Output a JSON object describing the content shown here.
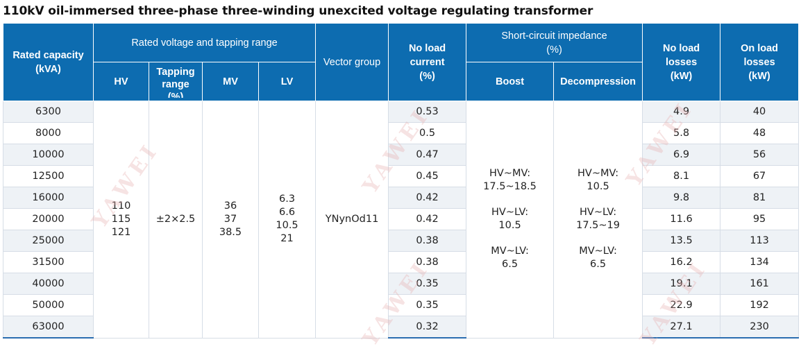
{
  "title": "110kV oil-immersed three-phase three-winding unexcited voltage regulating transformer",
  "headers": {
    "rated_capacity": [
      "Rated capacity",
      "(kVA)"
    ],
    "rated_voltage_group": "Rated voltage and tapping range",
    "hv": "HV",
    "tapping_range": [
      "Tapping",
      "range",
      "(%)"
    ],
    "mv": "MV",
    "lv": "LV",
    "vector_group": "Vector group",
    "no_load_current": [
      "No load",
      "current",
      "(%)"
    ],
    "short_circuit_group": [
      "Short-circuit impedance",
      "(%)"
    ],
    "boost": "Boost",
    "decompression": "Decompression",
    "no_load_losses": [
      "No load",
      "losses",
      "(kW)"
    ],
    "on_load_losses": [
      "On load",
      "losses",
      "(kW)"
    ]
  },
  "merged": {
    "hv": [
      "110",
      "115",
      "121"
    ],
    "tapping": "±2×2.5",
    "mv": [
      "36",
      "37",
      "38.5"
    ],
    "lv": [
      "6.3",
      "6.6",
      "10.5",
      "21"
    ],
    "vector": "YNynOd11",
    "boost": [
      [
        "HV~MV:",
        "17.5~18.5"
      ],
      [
        "HV~LV:",
        "10.5"
      ],
      [
        "MV~LV:",
        "6.5"
      ]
    ],
    "decompression": [
      [
        "HV~MV:",
        "10.5"
      ],
      [
        "HV~LV:",
        "17.5~19"
      ],
      [
        "MV~LV:",
        "6.5"
      ]
    ]
  },
  "rows": [
    {
      "capacity": "6300",
      "no_load_current": "0.53",
      "no_load_losses": "4.9",
      "on_load_losses": "40"
    },
    {
      "capacity": "8000",
      "no_load_current": "0.5",
      "no_load_losses": "5.8",
      "on_load_losses": "48"
    },
    {
      "capacity": "10000",
      "no_load_current": "0.47",
      "no_load_losses": "6.9",
      "on_load_losses": "56"
    },
    {
      "capacity": "12500",
      "no_load_current": "0.45",
      "no_load_losses": "8.1",
      "on_load_losses": "67"
    },
    {
      "capacity": "16000",
      "no_load_current": "0.42",
      "no_load_losses": "9.8",
      "on_load_losses": "81"
    },
    {
      "capacity": "20000",
      "no_load_current": "0.42",
      "no_load_losses": "11.6",
      "on_load_losses": "95"
    },
    {
      "capacity": "25000",
      "no_load_current": "0.38",
      "no_load_losses": "13.5",
      "on_load_losses": "113"
    },
    {
      "capacity": "31500",
      "no_load_current": "0.38",
      "no_load_losses": "16.2",
      "on_load_losses": "134"
    },
    {
      "capacity": "40000",
      "no_load_current": "0.35",
      "no_load_losses": "19.1",
      "on_load_losses": "161"
    },
    {
      "capacity": "50000",
      "no_load_current": "0.35",
      "no_load_losses": "22.9",
      "on_load_losses": "192"
    },
    {
      "capacity": "63000",
      "no_load_current": "0.32",
      "no_load_losses": "27.1",
      "on_load_losses": "230"
    }
  ],
  "watermark": "YAWEI"
}
